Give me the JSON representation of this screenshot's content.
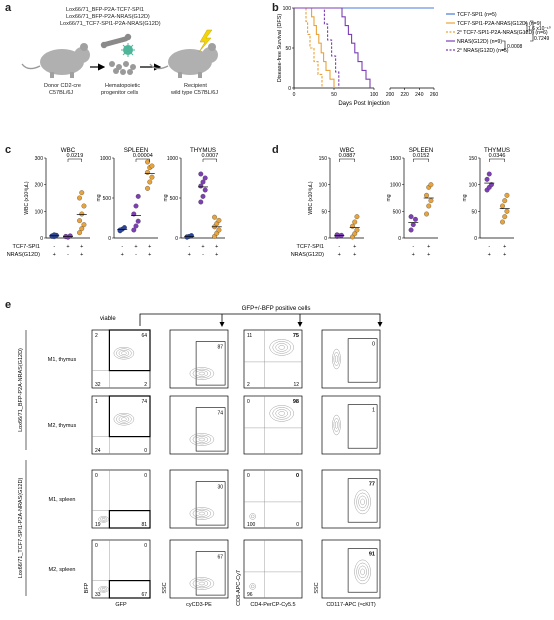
{
  "panels": {
    "a": "a",
    "b": "b",
    "c": "c",
    "d": "d",
    "e": "e"
  },
  "panel_a": {
    "constructs": [
      "Lox66/71_BFP-P2A-TCF7-SPI1",
      "Lox66/71_BFP-P2A-NRAS(G12D)",
      "Lox66/71_TCF7-SPI1-P2A-NRAS(G12D)"
    ],
    "donor": "Donor CD2-cre",
    "donor_strain": "C57BL/6J",
    "progenitor": "Hematopoietic",
    "progenitor_2": "progenitor cells",
    "recipient": "Recipient",
    "recipient_2": "wild type C57BL/6J"
  },
  "panel_c": {
    "charts": [
      {
        "title": "WBC",
        "ylabel": "WBC (x10³/μL)",
        "pval": "0.0219",
        "yticks": [
          "0",
          "100",
          "200",
          "300"
        ]
      },
      {
        "title": "SPLEEN",
        "ylabel": "mg",
        "pval": "0.00004",
        "yticks": [
          "0",
          "500",
          "1000"
        ]
      },
      {
        "title": "THYMUS",
        "ylabel": "mg",
        "pval": "0.0007",
        "yticks": [
          "0",
          "500",
          "1000"
        ]
      }
    ],
    "row_labels": [
      "TCF7-SPI1",
      "NRAS(G12D)"
    ],
    "signs": [
      [
        "-",
        "+",
        "+"
      ],
      [
        "+",
        "-",
        "+"
      ]
    ]
  },
  "panel_d": {
    "charts": [
      {
        "title": "WBC",
        "ylabel": "WBC (x10³/μL)",
        "pval": "0.0887",
        "yticks": [
          "0",
          "50",
          "100",
          "150"
        ]
      },
      {
        "title": "SPLEEN",
        "ylabel": "mg",
        "pval": "0.0152",
        "yticks": [
          "0",
          "500",
          "1000",
          "1500"
        ]
      },
      {
        "title": "THYMUS",
        "ylabel": "mg",
        "pval": "0.0346",
        "yticks": [
          "0",
          "50",
          "100",
          "150"
        ]
      }
    ],
    "row_labels": [
      "TCF7-SPI1",
      "NRAS(G12D)"
    ],
    "signs": [
      [
        "-",
        "+"
      ],
      [
        "+",
        "+"
      ]
    ]
  },
  "panel_e": {
    "header": "GFP+/-BFP positive cells",
    "viable": "viable",
    "group1": "Lox66/71_BFP-P2A-NRAS(G12D)",
    "group2": "Lox66/71_TCF7-SPI1-P2A-NRAS(G12D)",
    "rows": [
      {
        "label": "M1, thymus",
        "q": [
          "2",
          "64",
          "32",
          "2"
        ],
        "cd3": "87",
        "cd4": [
          "11",
          "75",
          "2",
          "12"
        ],
        "cd117": "0"
      },
      {
        "label": "M2, thymus",
        "q": [
          "1",
          "74",
          "24",
          "0"
        ],
        "cd3": "74",
        "cd4": [
          "0",
          "98",
          "",
          ""
        ],
        "cd117": "1"
      },
      {
        "label": "M1, spleen",
        "q": [
          "0",
          "0",
          "19",
          "81"
        ],
        "cd3": "30",
        "cd4": [
          "0",
          "0",
          "100",
          "0"
        ],
        "cd117": "77"
      },
      {
        "label": "M2, spleen",
        "q": [
          "0",
          "0",
          "33",
          "67"
        ],
        "cd3": "67",
        "cd4": [
          "",
          "",
          "96",
          ""
        ],
        "cd117": "91"
      }
    ],
    "xaxes": [
      "GFP",
      "cyCD3-PE",
      "CD4-PerCP-Cy5.5",
      "CD117-APC (≈cKIT)"
    ],
    "yaxes": [
      "BFP",
      "SSC",
      "CD8-APC-Cy7",
      "SSC"
    ]
  },
  "chart_data": [
    {
      "type": "line",
      "title": "",
      "xlabel": "Days Post Injection",
      "ylabel": "Disease-free Survival (DFS)",
      "ylim": [
        0,
        100
      ],
      "x_ticks": [
        "0",
        "50",
        "100",
        "200",
        "220",
        "240",
        "260"
      ],
      "y_ticks": [
        "0",
        "50",
        "100"
      ],
      "series": [
        {
          "name": "TCF7-SPI1 (n=5)",
          "color": "#4a7bd8",
          "style": "solid",
          "points": [
            [
              0,
              100
            ],
            [
              260,
              100
            ]
          ]
        },
        {
          "name": "TCF7-SPI1-P2A-NRAS(G12D) (n=9)",
          "color": "#e8a33a",
          "style": "solid",
          "points": [
            [
              0,
              100
            ],
            [
              20,
              100
            ],
            [
              22,
              89
            ],
            [
              25,
              78
            ],
            [
              28,
              67
            ],
            [
              31,
              56
            ],
            [
              34,
              44
            ],
            [
              37,
              33
            ],
            [
              40,
              22
            ],
            [
              45,
              11
            ],
            [
              50,
              0
            ]
          ]
        },
        {
          "name": "2° TCF7-SPI1-P2A-NRAS(G12D) (n=6)",
          "color": "#e8a33a",
          "style": "dashed",
          "points": [
            [
              0,
              100
            ],
            [
              12,
              100
            ],
            [
              15,
              83
            ],
            [
              17,
              67
            ],
            [
              20,
              50
            ],
            [
              25,
              33
            ],
            [
              30,
              17
            ],
            [
              35,
              0
            ]
          ]
        },
        {
          "name": "NRAS(G12D) (n=9)",
          "color": "#7d3fb3",
          "style": "solid",
          "points": [
            [
              0,
              100
            ],
            [
              55,
              100
            ],
            [
              60,
              89
            ],
            [
              64,
              78
            ],
            [
              68,
              67
            ],
            [
              72,
              56
            ],
            [
              76,
              44
            ],
            [
              80,
              33
            ],
            [
              85,
              22
            ],
            [
              90,
              11
            ],
            [
              95,
              0
            ]
          ]
        },
        {
          "name": "2° NRAS(G12D) (n=5)",
          "color": "#7d3fb3",
          "style": "dashed",
          "points": [
            [
              0,
              100
            ],
            [
              35,
              100
            ],
            [
              38,
              80
            ],
            [
              42,
              60
            ],
            [
              47,
              40
            ],
            [
              52,
              20
            ],
            [
              56,
              0
            ]
          ]
        }
      ],
      "annotations": [
        "1.6 x10⁻¹⁰",
        "0.7249",
        "0.0008"
      ],
      "legend_placement": "right"
    },
    {
      "type": "scatter",
      "title": "WBC",
      "ylabel": "WBC (x10³/μL)",
      "ylim": [
        0,
        300
      ],
      "groups": [
        {
          "values": [
            8,
            5,
            10,
            6,
            12
          ],
          "color": "#2a45a0"
        },
        {
          "values": [
            5,
            3,
            8,
            6
          ],
          "color": "#7d3fb3"
        },
        {
          "values": [
            20,
            35,
            50,
            65,
            90,
            120,
            150,
            170
          ],
          "color": "#e8a33a"
        }
      ]
    },
    {
      "type": "scatter",
      "title": "SPLEEN",
      "ylabel": "mg",
      "ylim": [
        0,
        1000
      ],
      "groups": [
        {
          "values": [
            90,
            110,
            130,
            100
          ],
          "color": "#2a45a0"
        },
        {
          "values": [
            100,
            150,
            210,
            300,
            400,
            520
          ],
          "color": "#7d3fb3"
        },
        {
          "values": [
            620,
            700,
            760,
            820,
            880,
            900,
            950
          ],
          "color": "#e8a33a"
        }
      ]
    },
    {
      "type": "scatter",
      "title": "THYMUS",
      "ylabel": "mg",
      "ylim": [
        0,
        1000
      ],
      "groups": [
        {
          "values": [
            10,
            20,
            30,
            15
          ],
          "color": "#2a45a0"
        },
        {
          "values": [
            450,
            520,
            600,
            650,
            700,
            750,
            800
          ],
          "color": "#7d3fb3"
        },
        {
          "values": [
            20,
            60,
            100,
            140,
            180,
            220,
            260
          ],
          "color": "#e8a33a"
        }
      ]
    },
    {
      "type": "scatter",
      "title": "WBC",
      "ylabel": "WBC (x10³/μL)",
      "ylim": [
        0,
        150
      ],
      "groups": [
        {
          "values": [
            3,
            4,
            5,
            6
          ],
          "color": "#7d3fb3"
        },
        {
          "values": [
            2,
            8,
            15,
            22,
            30,
            40
          ],
          "color": "#e8a33a"
        }
      ]
    },
    {
      "type": "scatter",
      "title": "SPLEEN",
      "ylabel": "mg",
      "ylim": [
        0,
        1500
      ],
      "groups": [
        {
          "values": [
            150,
            250,
            350,
            400
          ],
          "color": "#7d3fb3"
        },
        {
          "values": [
            450,
            600,
            700,
            800,
            950,
            1000
          ],
          "color": "#e8a33a"
        }
      ]
    },
    {
      "type": "scatter",
      "title": "THYMUS",
      "ylabel": "mg",
      "ylim": [
        0,
        150
      ],
      "groups": [
        {
          "values": [
            90,
            95,
            100,
            110,
            120
          ],
          "color": "#7d3fb3"
        },
        {
          "values": [
            30,
            40,
            50,
            60,
            70,
            80
          ],
          "color": "#e8a33a"
        }
      ]
    }
  ]
}
